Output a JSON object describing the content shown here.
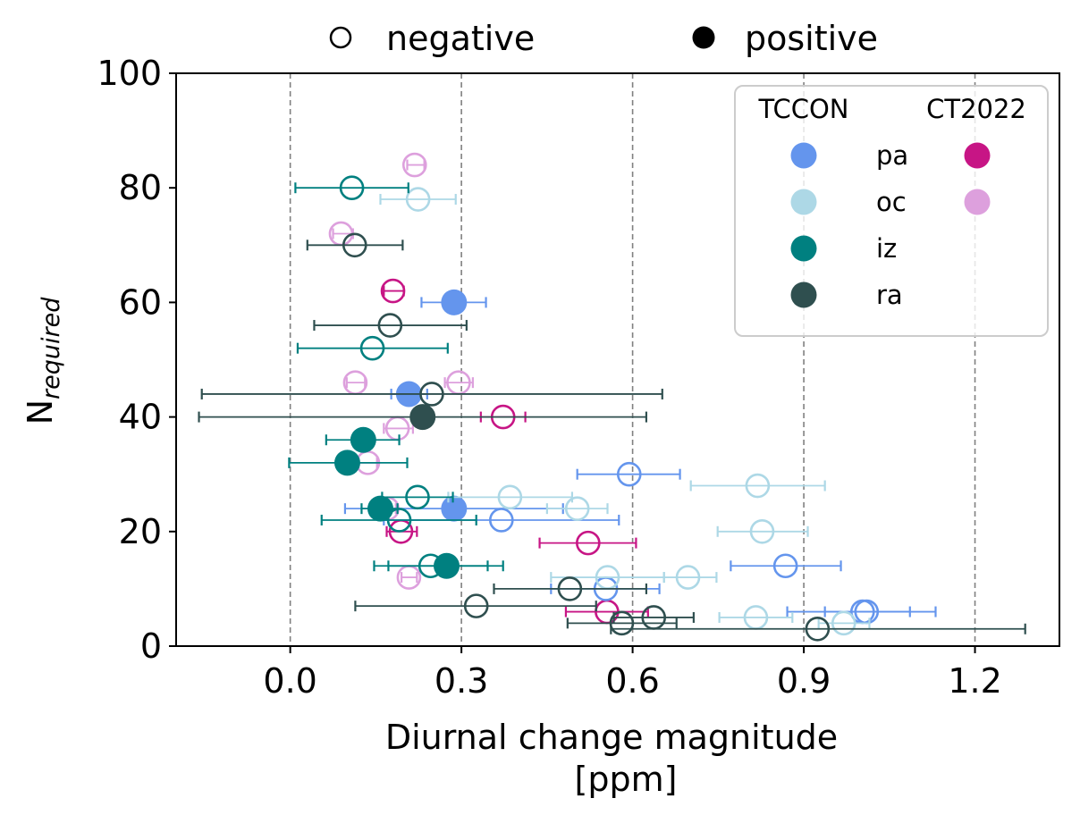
{
  "chart_data": {
    "type": "scatter",
    "title": "",
    "xlabel_lines": [
      "Diurnal change magnitude",
      "[ppm]"
    ],
    "ylabel": "N",
    "ylabel_subscript": "required",
    "xlim": [
      -0.2,
      1.348
    ],
    "ylim": [
      0,
      100
    ],
    "xticks": [
      0.0,
      0.3,
      0.6,
      0.9,
      1.2
    ],
    "xtick_labels": [
      "0.0",
      "0.3",
      "0.6",
      "0.9",
      "1.2"
    ],
    "yticks": [
      0,
      20,
      40,
      60,
      80,
      100
    ],
    "ytick_labels": [
      "0",
      "20",
      "40",
      "60",
      "80",
      "100"
    ],
    "grid": {
      "x": true,
      "y": false,
      "style": "dashed",
      "color": "#808080"
    },
    "marker_legend": {
      "placement": "top-outside",
      "entries": [
        {
          "label": "negative",
          "fill": "open"
        },
        {
          "label": "positive",
          "fill": "filled"
        }
      ]
    },
    "color_legend": {
      "placement": "top-right",
      "columns": [
        "TCCON",
        "CT2022"
      ],
      "rows": [
        {
          "label": "pa",
          "TCCON": "#6495ED",
          "CT2022": "#C71585"
        },
        {
          "label": "oc",
          "TCCON": "#ADD8E6",
          "CT2022": "#DDA0DD"
        },
        {
          "label": "iz",
          "TCCON": "#008080",
          "CT2022": null
        },
        {
          "label": "ra",
          "TCCON": "#2F4F4F",
          "CT2022": null
        }
      ]
    },
    "series": [
      {
        "name": "CT2022 pa",
        "source": "CT2022",
        "site": "pa",
        "color": "#C71585",
        "points": [
          {
            "x": 0.18,
            "y": 62,
            "xerr": [
              0.164,
              0.199
            ],
            "sign": "negative"
          },
          {
            "x": 0.373,
            "y": 40,
            "xerr": [
              0.334,
              0.412
            ],
            "sign": "negative"
          },
          {
            "x": 0.194,
            "y": 20,
            "xerr": [
              0.169,
              0.222
            ],
            "sign": "negative"
          },
          {
            "x": 0.522,
            "y": 18,
            "xerr": [
              0.437,
              0.606
            ],
            "sign": "negative"
          },
          {
            "x": 0.555,
            "y": 6,
            "xerr": [
              0.483,
              0.627
            ],
            "sign": "negative"
          }
        ]
      },
      {
        "name": "CT2022 oc",
        "source": "CT2022",
        "site": "oc",
        "color": "#DDA0DD",
        "points": [
          {
            "x": 0.218,
            "y": 84,
            "xerr": [
              0.205,
              0.235
            ],
            "sign": "negative"
          },
          {
            "x": 0.089,
            "y": 72,
            "xerr": [
              0.075,
              0.11
            ],
            "sign": "negative"
          },
          {
            "x": 0.114,
            "y": 46,
            "xerr": [
              0.099,
              0.131
            ],
            "sign": "negative"
          },
          {
            "x": 0.295,
            "y": 46,
            "xerr": [
              0.271,
              0.32
            ],
            "sign": "negative"
          },
          {
            "x": 0.188,
            "y": 38,
            "xerr": [
              0.164,
              0.215
            ],
            "sign": "negative"
          },
          {
            "x": 0.136,
            "y": 32,
            "xerr": [
              0.12,
              0.152
            ],
            "sign": "negative"
          },
          {
            "x": 0.17,
            "y": 24,
            "xerr": [
              0.155,
              0.185
            ],
            "sign": "negative"
          },
          {
            "x": 0.208,
            "y": 12,
            "xerr": [
              0.195,
              0.222
            ],
            "sign": "negative"
          }
        ]
      },
      {
        "name": "TCCON pa",
        "source": "TCCON",
        "site": "pa",
        "color": "#6495ED",
        "points": [
          {
            "x": 0.287,
            "y": 60,
            "xerr": [
              0.23,
              0.343
            ],
            "sign": "positive"
          },
          {
            "x": 0.208,
            "y": 44,
            "xerr": [
              0.177,
              0.24
            ],
            "sign": "positive"
          },
          {
            "x": 0.594,
            "y": 30,
            "xerr": [
              0.503,
              0.683
            ],
            "sign": "negative"
          },
          {
            "x": 0.287,
            "y": 24,
            "xerr": [
              0.096,
              0.478
            ],
            "sign": "positive"
          },
          {
            "x": 0.37,
            "y": 22,
            "xerr": [
              0.164,
              0.576
            ],
            "sign": "negative"
          },
          {
            "x": 0.868,
            "y": 14,
            "xerr": [
              0.772,
              0.965
            ],
            "sign": "negative"
          },
          {
            "x": 0.553,
            "y": 10,
            "xerr": [
              0.457,
              0.647
            ],
            "sign": "negative"
          },
          {
            "x": 1.003,
            "y": 6,
            "xerr": [
              0.871,
              1.131
            ],
            "sign": "negative"
          },
          {
            "x": 1.01,
            "y": 6,
            "xerr": [
              0.937,
              1.086
            ],
            "sign": "negative"
          }
        ]
      },
      {
        "name": "TCCON oc",
        "source": "TCCON",
        "site": "oc",
        "color": "#ADD8E6",
        "points": [
          {
            "x": 0.224,
            "y": 78,
            "xerr": [
              0.158,
              0.29
            ],
            "sign": "negative"
          },
          {
            "x": 0.819,
            "y": 28,
            "xerr": [
              0.702,
              0.937
            ],
            "sign": "negative"
          },
          {
            "x": 0.385,
            "y": 26,
            "xerr": [
              0.277,
              0.494
            ],
            "sign": "negative"
          },
          {
            "x": 0.503,
            "y": 24,
            "xerr": [
              0.45,
              0.556
            ],
            "sign": "negative"
          },
          {
            "x": 0.827,
            "y": 20,
            "xerr": [
              0.749,
              0.907
            ],
            "sign": "negative"
          },
          {
            "x": 0.556,
            "y": 12,
            "xerr": [
              0.457,
              0.655
            ],
            "sign": "negative"
          },
          {
            "x": 0.697,
            "y": 12,
            "xerr": [
              0.655,
              0.747
            ],
            "sign": "negative"
          },
          {
            "x": 0.816,
            "y": 5,
            "xerr": [
              0.752,
              0.88
            ],
            "sign": "negative"
          },
          {
            "x": 0.97,
            "y": 4,
            "xerr": [
              0.926,
              1.015
            ],
            "sign": "negative"
          }
        ]
      },
      {
        "name": "TCCON iz",
        "source": "TCCON",
        "site": "iz",
        "color": "#008080",
        "points": [
          {
            "x": 0.108,
            "y": 80,
            "xerr": [
              0.009,
              0.207
            ],
            "sign": "negative"
          },
          {
            "x": 0.144,
            "y": 52,
            "xerr": [
              0.013,
              0.276
            ],
            "sign": "negative"
          },
          {
            "x": 0.128,
            "y": 36,
            "xerr": [
              0.063,
              0.191
            ],
            "sign": "positive"
          },
          {
            "x": 0.1,
            "y": 32,
            "xerr": [
              -0.002,
              0.205
            ],
            "sign": "positive"
          },
          {
            "x": 0.223,
            "y": 26,
            "xerr": [
              0.161,
              0.285
            ],
            "sign": "negative"
          },
          {
            "x": 0.158,
            "y": 24,
            "xerr": [
              0.125,
              0.188
            ],
            "sign": "positive"
          },
          {
            "x": 0.191,
            "y": 22,
            "xerr": [
              0.055,
              0.326
            ],
            "sign": "negative"
          },
          {
            "x": 0.246,
            "y": 14,
            "xerr": [
              0.147,
              0.346
            ],
            "sign": "negative"
          },
          {
            "x": 0.274,
            "y": 14,
            "xerr": [
              0.172,
              0.373
            ],
            "sign": "positive"
          }
        ]
      },
      {
        "name": "TCCON ra",
        "source": "TCCON",
        "site": "ra",
        "color": "#2F4F4F",
        "points": [
          {
            "x": 0.113,
            "y": 70,
            "xerr": [
              0.03,
              0.197
            ],
            "sign": "negative"
          },
          {
            "x": 0.175,
            "y": 56,
            "xerr": [
              0.042,
              0.309
            ],
            "sign": "negative"
          },
          {
            "x": 0.248,
            "y": 44,
            "xerr": [
              -0.155,
              0.652
            ],
            "sign": "negative"
          },
          {
            "x": 0.232,
            "y": 40,
            "xerr": [
              -0.16,
              0.624
            ],
            "sign": "positive"
          },
          {
            "x": 0.49,
            "y": 10,
            "xerr": [
              0.357,
              0.624
            ],
            "sign": "negative"
          },
          {
            "x": 0.326,
            "y": 7,
            "xerr": [
              0.114,
              0.536
            ],
            "sign": "negative"
          },
          {
            "x": 0.637,
            "y": 5,
            "xerr": [
              0.567,
              0.707
            ],
            "sign": "negative"
          },
          {
            "x": 0.581,
            "y": 4,
            "xerr": [
              0.486,
              0.677
            ],
            "sign": "negative"
          },
          {
            "x": 0.924,
            "y": 3,
            "xerr": [
              0.562,
              1.288
            ],
            "sign": "negative"
          }
        ]
      }
    ]
  }
}
